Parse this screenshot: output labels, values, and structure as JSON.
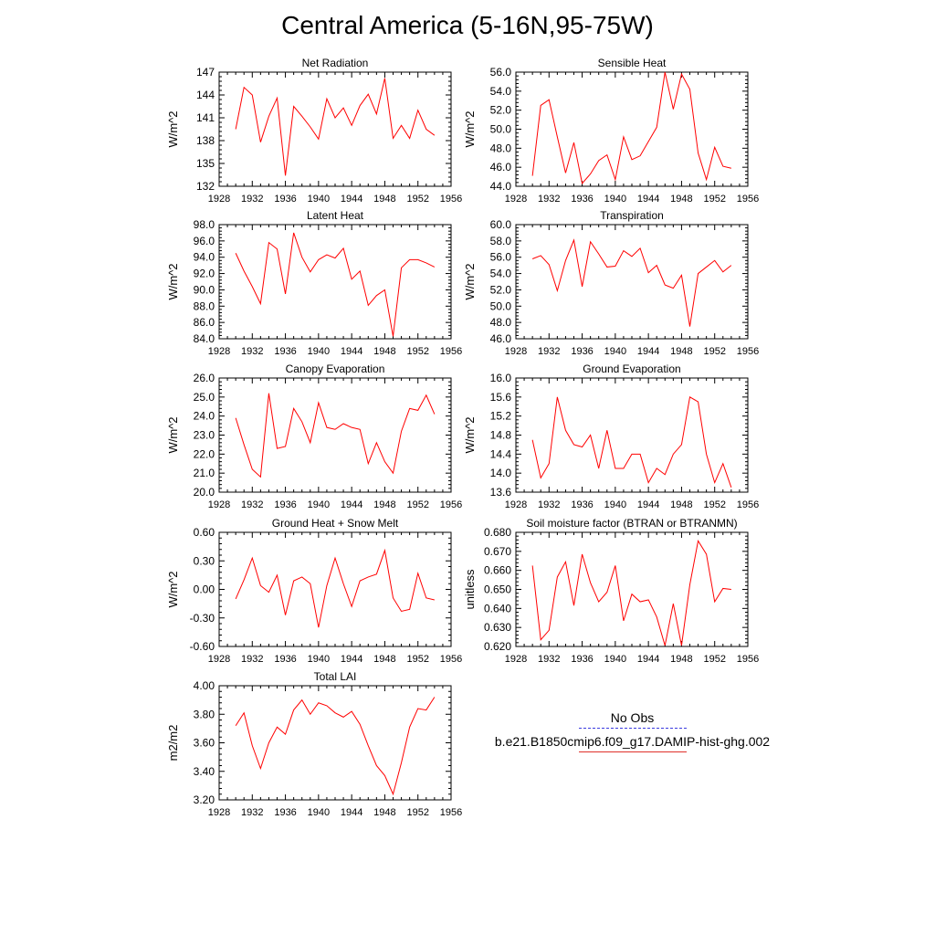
{
  "title": "Central America (5-16N,95-75W)",
  "colors": {
    "model_line": "#ff0000",
    "obs_line": "#3a3adf",
    "axis": "#000000"
  },
  "legend": {
    "entries": [
      {
        "label": "No Obs",
        "style": "dashed",
        "color": "#3a3adf"
      },
      {
        "label": "b.e21.B1850cmip6.f09_g17.DAMIP-hist-ghg.002",
        "style": "solid",
        "color": "#ff0000"
      }
    ]
  },
  "chart_data": [
    {
      "type": "line",
      "title": "Net Radiation",
      "ylabel": "W/m^2",
      "xlim": [
        1928,
        1956
      ],
      "xticks": [
        1928,
        1932,
        1936,
        1940,
        1944,
        1948,
        1952,
        1956
      ],
      "ylim": [
        132,
        147
      ],
      "yticks": [
        "132",
        "135",
        "138",
        "141",
        "144",
        "147"
      ],
      "x": [
        1930,
        1931,
        1932,
        1933,
        1934,
        1935,
        1936,
        1937,
        1938,
        1939,
        1940,
        1941,
        1942,
        1943,
        1944,
        1945,
        1946,
        1947,
        1948,
        1949,
        1950,
        1951,
        1952,
        1953,
        1954
      ],
      "values": [
        139.5,
        145.0,
        144.0,
        137.8,
        141.2,
        143.6,
        133.4,
        142.5,
        141.2,
        139.8,
        138.2,
        143.5,
        141.0,
        142.3,
        140.0,
        142.6,
        144.1,
        141.5,
        146.2,
        138.3,
        140.0,
        138.3,
        142.0,
        139.5,
        138.7
      ]
    },
    {
      "type": "line",
      "title": "Sensible Heat",
      "ylabel": "W/m^2",
      "xlim": [
        1928,
        1956
      ],
      "xticks": [
        1928,
        1932,
        1936,
        1940,
        1944,
        1948,
        1952,
        1956
      ],
      "ylim": [
        44,
        56
      ],
      "yticks": [
        "44.0",
        "46.0",
        "48.0",
        "50.0",
        "52.0",
        "54.0",
        "56.0"
      ],
      "x": [
        1930,
        1931,
        1932,
        1933,
        1934,
        1935,
        1936,
        1937,
        1938,
        1939,
        1940,
        1941,
        1942,
        1943,
        1944,
        1945,
        1946,
        1947,
        1948,
        1949,
        1950,
        1951,
        1952,
        1953,
        1954
      ],
      "values": [
        45.1,
        52.5,
        53.1,
        49.2,
        45.4,
        48.6,
        44.3,
        45.3,
        46.7,
        47.3,
        44.7,
        49.2,
        46.8,
        47.2,
        48.7,
        50.2,
        56.0,
        52.1,
        55.8,
        54.2,
        47.5,
        44.7,
        48.1,
        46.1,
        45.9
      ]
    },
    {
      "type": "line",
      "title": "Latent Heat",
      "ylabel": "W/m^2",
      "xlim": [
        1928,
        1956
      ],
      "xticks": [
        1928,
        1932,
        1936,
        1940,
        1944,
        1948,
        1952,
        1956
      ],
      "ylim": [
        84,
        98
      ],
      "yticks": [
        "84.0",
        "86.0",
        "88.0",
        "90.0",
        "92.0",
        "94.0",
        "96.0",
        "98.0"
      ],
      "x": [
        1930,
        1931,
        1932,
        1933,
        1934,
        1935,
        1936,
        1937,
        1938,
        1939,
        1940,
        1941,
        1942,
        1943,
        1944,
        1945,
        1946,
        1947,
        1948,
        1949,
        1950,
        1951,
        1952,
        1953,
        1954
      ],
      "values": [
        94.5,
        92.3,
        90.4,
        88.3,
        95.8,
        95.0,
        89.5,
        97.0,
        94.0,
        92.2,
        93.7,
        94.3,
        93.9,
        95.1,
        91.3,
        92.3,
        88.1,
        89.3,
        90.0,
        84.3,
        92.7,
        93.7,
        93.7,
        93.3,
        92.8
      ]
    },
    {
      "type": "line",
      "title": "Transpiration",
      "ylabel": "W/m^2",
      "xlim": [
        1928,
        1956
      ],
      "xticks": [
        1928,
        1932,
        1936,
        1940,
        1944,
        1948,
        1952,
        1956
      ],
      "ylim": [
        46,
        60
      ],
      "yticks": [
        "46.0",
        "48.0",
        "50.0",
        "52.0",
        "54.0",
        "56.0",
        "58.0",
        "60.0"
      ],
      "x": [
        1930,
        1931,
        1932,
        1933,
        1934,
        1935,
        1936,
        1937,
        1938,
        1939,
        1940,
        1941,
        1942,
        1943,
        1944,
        1945,
        1946,
        1947,
        1948,
        1949,
        1950,
        1951,
        1952,
        1953,
        1954
      ],
      "values": [
        55.8,
        56.2,
        55.1,
        51.9,
        55.6,
        58.1,
        52.4,
        57.9,
        56.4,
        54.8,
        54.9,
        56.8,
        56.1,
        57.1,
        54.1,
        55.0,
        52.6,
        52.2,
        53.8,
        47.5,
        54.0,
        54.8,
        55.6,
        54.2,
        55.0
      ]
    },
    {
      "type": "line",
      "title": "Canopy Evaporation",
      "ylabel": "W/m^2",
      "xlim": [
        1928,
        1956
      ],
      "xticks": [
        1928,
        1932,
        1936,
        1940,
        1944,
        1948,
        1952,
        1956
      ],
      "ylim": [
        20,
        26
      ],
      "yticks": [
        "20.0",
        "21.0",
        "22.0",
        "23.0",
        "24.0",
        "25.0",
        "26.0"
      ],
      "x": [
        1930,
        1931,
        1932,
        1933,
        1934,
        1935,
        1936,
        1937,
        1938,
        1939,
        1940,
        1941,
        1942,
        1943,
        1944,
        1945,
        1946,
        1947,
        1948,
        1949,
        1950,
        1951,
        1952,
        1953,
        1954
      ],
      "values": [
        23.9,
        22.5,
        21.2,
        20.8,
        25.2,
        22.3,
        22.4,
        24.4,
        23.7,
        22.6,
        24.7,
        23.4,
        23.3,
        23.6,
        23.4,
        23.3,
        21.5,
        22.6,
        21.6,
        21.0,
        23.2,
        24.4,
        24.3,
        25.1,
        24.1
      ]
    },
    {
      "type": "line",
      "title": "Ground Evaporation",
      "ylabel": "W/m^2",
      "xlim": [
        1928,
        1956
      ],
      "xticks": [
        1928,
        1932,
        1936,
        1940,
        1944,
        1948,
        1952,
        1956
      ],
      "ylim": [
        13.6,
        16.0
      ],
      "yticks": [
        "13.6",
        "14.0",
        "14.4",
        "14.8",
        "15.2",
        "15.6",
        "16.0"
      ],
      "x": [
        1930,
        1931,
        1932,
        1933,
        1934,
        1935,
        1936,
        1937,
        1938,
        1939,
        1940,
        1941,
        1942,
        1943,
        1944,
        1945,
        1946,
        1947,
        1948,
        1949,
        1950,
        1951,
        1952,
        1953,
        1954
      ],
      "values": [
        14.7,
        13.9,
        14.2,
        15.6,
        14.9,
        14.6,
        14.55,
        14.8,
        14.1,
        14.9,
        14.1,
        14.1,
        14.4,
        14.4,
        13.8,
        14.1,
        13.97,
        14.4,
        14.6,
        15.6,
        15.5,
        14.4,
        13.8,
        14.2,
        13.7
      ]
    },
    {
      "type": "line",
      "title": "Ground Heat + Snow Melt",
      "ylabel": "W/m^2",
      "xlim": [
        1928,
        1956
      ],
      "xticks": [
        1928,
        1932,
        1936,
        1940,
        1944,
        1948,
        1952,
        1956
      ],
      "ylim": [
        -0.6,
        0.6
      ],
      "yticks": [
        "-0.60",
        "-0.30",
        "0.00",
        "0.30",
        "0.60"
      ],
      "x": [
        1930,
        1931,
        1932,
        1933,
        1934,
        1935,
        1936,
        1937,
        1938,
        1939,
        1940,
        1941,
        1942,
        1943,
        1944,
        1945,
        1946,
        1947,
        1948,
        1949,
        1950,
        1951,
        1952,
        1953,
        1954
      ],
      "values": [
        -0.1,
        0.1,
        0.33,
        0.04,
        -0.03,
        0.15,
        -0.27,
        0.09,
        0.13,
        0.06,
        -0.4,
        0.04,
        0.33,
        0.06,
        -0.18,
        0.09,
        0.13,
        0.16,
        0.41,
        -0.09,
        -0.23,
        -0.21,
        0.17,
        -0.09,
        -0.11
      ]
    },
    {
      "type": "line",
      "title": "Soil moisture factor (BTRAN or BTRANMN)",
      "ylabel": "unitless",
      "xlim": [
        1928,
        1956
      ],
      "xticks": [
        1928,
        1932,
        1936,
        1940,
        1944,
        1948,
        1952,
        1956
      ],
      "ylim": [
        0.62,
        0.68
      ],
      "yticks": [
        "0.620",
        "0.630",
        "0.640",
        "0.650",
        "0.660",
        "0.670",
        "0.680"
      ],
      "x": [
        1930,
        1931,
        1932,
        1933,
        1934,
        1935,
        1936,
        1937,
        1938,
        1939,
        1940,
        1941,
        1942,
        1943,
        1944,
        1945,
        1946,
        1947,
        1948,
        1949,
        1950,
        1951,
        1952,
        1953,
        1954
      ],
      "values": [
        0.6625,
        0.6235,
        0.6285,
        0.6565,
        0.6645,
        0.6415,
        0.6685,
        0.6535,
        0.6435,
        0.6485,
        0.6625,
        0.6335,
        0.6475,
        0.6435,
        0.6445,
        0.6355,
        0.6205,
        0.6425,
        0.6205,
        0.6525,
        0.6755,
        0.6685,
        0.6435,
        0.6505,
        0.65
      ]
    },
    {
      "type": "line",
      "title": "Total LAI",
      "ylabel": "m2/m2",
      "xlim": [
        1928,
        1956
      ],
      "xticks": [
        1928,
        1932,
        1936,
        1940,
        1944,
        1948,
        1952,
        1956
      ],
      "ylim": [
        3.2,
        4.0
      ],
      "yticks": [
        "3.20",
        "3.40",
        "3.60",
        "3.80",
        "4.00"
      ],
      "x": [
        1930,
        1931,
        1932,
        1933,
        1934,
        1935,
        1936,
        1937,
        1938,
        1939,
        1940,
        1941,
        1942,
        1943,
        1944,
        1945,
        1946,
        1947,
        1948,
        1949,
        1950,
        1951,
        1952,
        1953,
        1954
      ],
      "values": [
        3.72,
        3.81,
        3.58,
        3.42,
        3.6,
        3.71,
        3.66,
        3.83,
        3.9,
        3.8,
        3.88,
        3.86,
        3.81,
        3.78,
        3.82,
        3.73,
        3.58,
        3.44,
        3.37,
        3.24,
        3.46,
        3.71,
        3.84,
        3.83,
        3.92
      ]
    }
  ]
}
